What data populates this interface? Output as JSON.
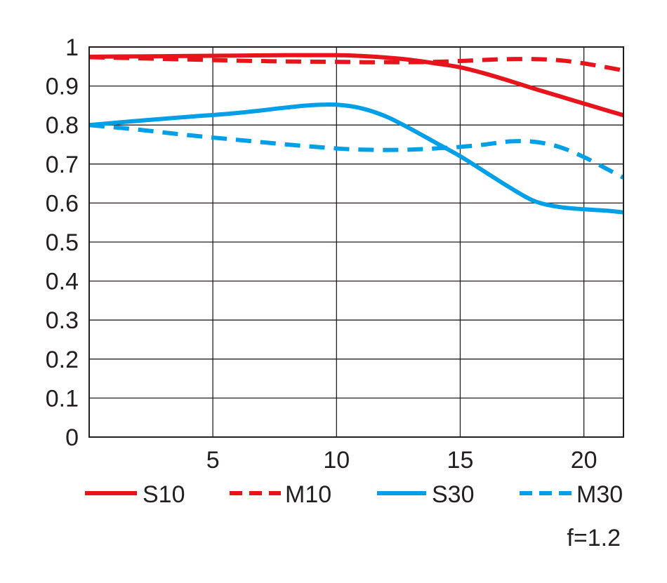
{
  "chart_data": {
    "type": "line",
    "x_ticks": [
      5,
      10,
      15,
      20
    ],
    "y_ticks": [
      0,
      0.1,
      0.2,
      0.3,
      0.4,
      0.5,
      0.6,
      0.7,
      0.8,
      0.9,
      1
    ],
    "y_tick_labels": [
      "0",
      "0.1",
      "0.2",
      "0.3",
      "0.4",
      "0.5",
      "0.6",
      "0.7",
      "0.8",
      "0.9",
      "1"
    ],
    "x_tick_labels": [
      "5",
      "10",
      "15",
      "20"
    ],
    "xlim": [
      0,
      21.6
    ],
    "ylim": [
      0,
      1
    ],
    "grid": true,
    "legend_position": "bottom",
    "annotation": "f=1.2",
    "series": [
      {
        "name": "S10",
        "color": "#e8141b",
        "dash": "solid",
        "x": [
          0,
          2,
          4,
          6,
          8,
          10,
          11,
          12,
          13,
          14,
          15,
          16,
          17,
          18,
          19,
          20,
          21,
          21.6
        ],
        "y": [
          0.975,
          0.976,
          0.977,
          0.978,
          0.979,
          0.979,
          0.977,
          0.973,
          0.967,
          0.958,
          0.948,
          0.932,
          0.913,
          0.893,
          0.874,
          0.855,
          0.836,
          0.825
        ]
      },
      {
        "name": "M10",
        "color": "#e8141b",
        "dash": "dashed",
        "x": [
          0,
          2,
          4,
          6,
          8,
          10,
          11,
          12,
          13,
          14,
          15,
          16,
          17,
          18,
          19,
          20,
          21,
          21.6
        ],
        "y": [
          0.974,
          0.971,
          0.968,
          0.965,
          0.963,
          0.962,
          0.961,
          0.961,
          0.961,
          0.962,
          0.964,
          0.967,
          0.969,
          0.969,
          0.966,
          0.958,
          0.947,
          0.94
        ]
      },
      {
        "name": "S30",
        "color": "#00a0e9",
        "dash": "solid",
        "x": [
          0,
          2,
          4,
          6,
          8,
          9,
          10,
          11,
          12,
          13,
          14,
          15,
          16,
          17,
          18,
          19,
          20,
          21,
          21.6
        ],
        "y": [
          0.8,
          0.811,
          0.821,
          0.831,
          0.845,
          0.851,
          0.852,
          0.843,
          0.822,
          0.79,
          0.755,
          0.72,
          0.68,
          0.64,
          0.605,
          0.59,
          0.584,
          0.58,
          0.576
        ]
      },
      {
        "name": "M30",
        "color": "#00a0e9",
        "dash": "dashed",
        "x": [
          0,
          2,
          4,
          6,
          8,
          10,
          11,
          12,
          13,
          14,
          15,
          16,
          17,
          18,
          19,
          20,
          21,
          21.6
        ],
        "y": [
          0.8,
          0.788,
          0.774,
          0.762,
          0.75,
          0.74,
          0.737,
          0.736,
          0.737,
          0.74,
          0.744,
          0.75,
          0.758,
          0.757,
          0.744,
          0.718,
          0.685,
          0.665
        ]
      }
    ]
  }
}
